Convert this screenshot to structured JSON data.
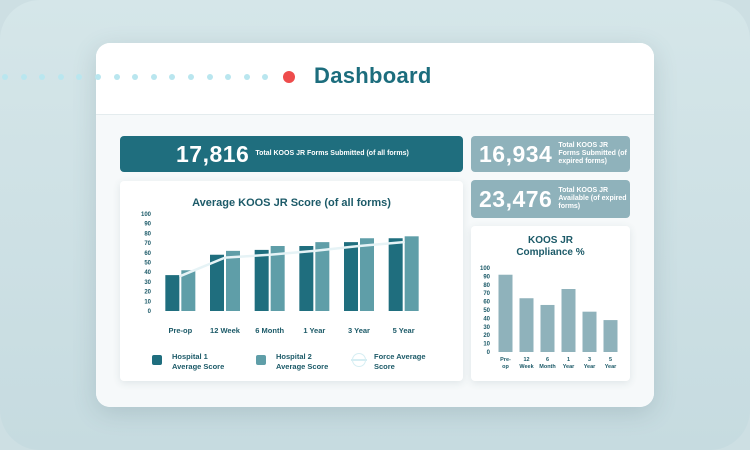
{
  "header": {
    "title": "Dashboard"
  },
  "stats": {
    "total": {
      "value": "17,816",
      "label": "Total KOOS JR Forms Submitted (of all forms)"
    },
    "expired": {
      "value": "16,934",
      "label": "Total KOOS JR Forms Submitted (of expired forms)"
    },
    "available": {
      "value": "23,476",
      "label": "Total KOOS JR Available (of expired forms)"
    }
  },
  "colors": {
    "primary": "#1f6e7e",
    "secondary": "#5f9ea8",
    "muted": "#8fb2bb",
    "line": "#e6f3f6",
    "accent_dot": "#ee4c4c"
  },
  "legend": {
    "hospital1": "Hospital 1 Average Score",
    "hospital2": "Hospital 2 Average Score",
    "force": "Force Average Score"
  },
  "chart_data": [
    {
      "type": "bar",
      "title": "Average KOOS JR Score (of all forms)",
      "categories": [
        "Pre-op",
        "12 Week",
        "6 Month",
        "1 Year",
        "3 Year",
        "5 Year"
      ],
      "series": [
        {
          "name": "Hospital 1 Average Score",
          "values": [
            37,
            58,
            63,
            67,
            71,
            75
          ]
        },
        {
          "name": "Hospital 2 Average Score",
          "values": [
            42,
            62,
            67,
            71,
            75,
            77
          ]
        },
        {
          "name": "Force Average Score",
          "kind": "line",
          "values": [
            36,
            55,
            58,
            62,
            67,
            71
          ]
        }
      ],
      "ylim": [
        0,
        100
      ],
      "yticks": [
        0,
        10,
        20,
        30,
        40,
        50,
        60,
        70,
        80,
        90,
        100
      ]
    },
    {
      "type": "bar",
      "title": "KOOS JR Compliance %",
      "categories": [
        "Pre-op",
        "12 Week",
        "6 Month",
        "1 Year",
        "3 Year",
        "5 Year"
      ],
      "values": [
        92,
        64,
        56,
        75,
        48,
        38
      ],
      "ylim": [
        0,
        100
      ],
      "yticks": [
        0,
        10,
        20,
        30,
        40,
        50,
        60,
        70,
        80,
        90,
        100
      ]
    }
  ]
}
